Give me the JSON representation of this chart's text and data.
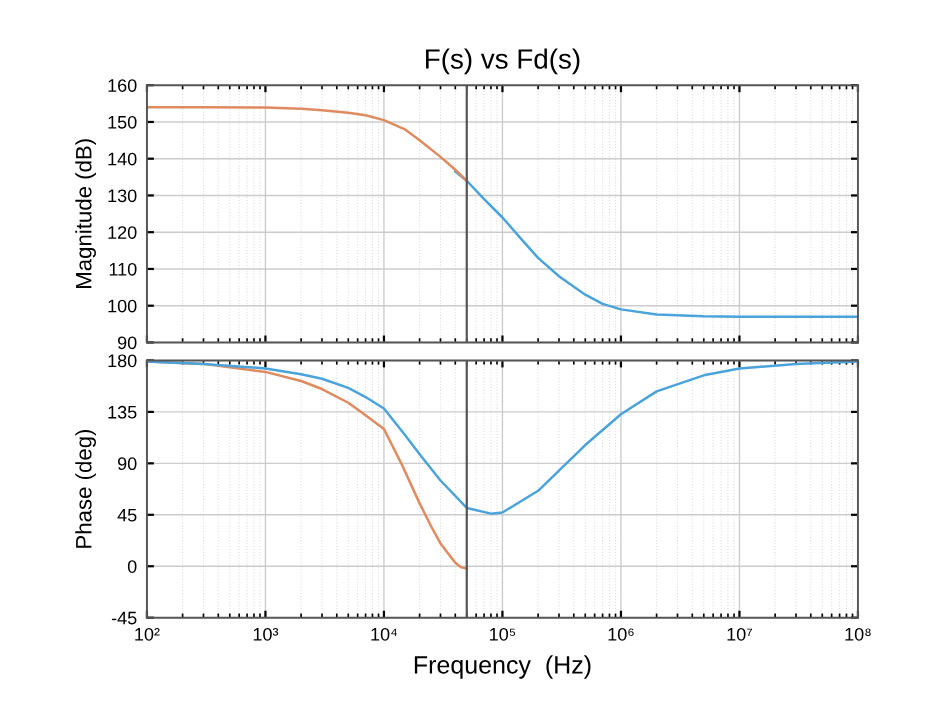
{
  "chart_data": [
    {
      "type": "line",
      "title": "F(s) vs Fd(s)",
      "ylabel": "Magnitude (dB)",
      "log": "x",
      "grid": true,
      "tick_labels": "y",
      "xlim": [
        100,
        100000000
      ],
      "ylim": [
        90,
        160
      ],
      "yticks": [
        90,
        100,
        110,
        120,
        130,
        140,
        150,
        160
      ],
      "xticks": [
        {
          "value": 100,
          "label": null
        },
        {
          "value": 1000,
          "label": null
        },
        {
          "value": 10000,
          "label": null
        },
        {
          "value": 100000,
          "label": null
        },
        {
          "value": 1000000,
          "label": null
        },
        {
          "value": 10000000,
          "label": null
        },
        {
          "value": 100000000,
          "label": null
        }
      ],
      "ref_lines": [
        {
          "axis": "x",
          "value": 50000,
          "label": null,
          "color": "#555555"
        }
      ],
      "series": [
        {
          "color": "#4ba3dc",
          "x": [
            40000,
            50000,
            70000,
            100000,
            150000,
            200000,
            300000,
            500000,
            700000,
            1000000,
            2000000,
            5000000,
            10000000,
            100000000
          ],
          "values": [
            136.5,
            134,
            129,
            124,
            117.5,
            113,
            108,
            103,
            100.5,
            99,
            97.6,
            97.1,
            97,
            97
          ]
        },
        {
          "color": "#e08a5f",
          "x": [
            100,
            300,
            1000,
            2000,
            3000,
            5000,
            7000,
            10000,
            15000,
            20000,
            30000,
            40000,
            50000
          ],
          "values": [
            154,
            154,
            153.9,
            153.6,
            153.2,
            152.5,
            151.8,
            150.5,
            148,
            145,
            140.5,
            137,
            134
          ]
        }
      ]
    },
    {
      "type": "line",
      "xlabel": "Frequency  (Hz)",
      "ylabel": "Phase (deg)",
      "log": "x",
      "grid": true,
      "xlim": [
        100,
        100000000
      ],
      "ylim": [
        -45,
        180
      ],
      "yticks": [
        -45,
        0,
        45,
        90,
        135,
        180
      ],
      "xticks": [
        {
          "value": 100,
          "label": "10²"
        },
        {
          "value": 1000,
          "label": "10³"
        },
        {
          "value": 10000,
          "label": "10⁴"
        },
        {
          "value": 100000,
          "label": "10⁵"
        },
        {
          "value": 1000000,
          "label": "10⁶"
        },
        {
          "value": 10000000,
          "label": "10⁷"
        },
        {
          "value": 100000000,
          "label": "10⁸"
        }
      ],
      "ref_lines": [
        {
          "axis": "x",
          "value": 50000,
          "label": null,
          "color": "#555555"
        }
      ],
      "series": [
        {
          "color": "#e08a5f",
          "x": [
            100,
            300,
            1000,
            2000,
            3000,
            5000,
            7000,
            10000,
            14000,
            20000,
            25000,
            30000,
            40000,
            45000,
            50000
          ],
          "values": [
            179,
            177,
            170,
            162,
            155,
            143,
            132,
            120,
            90,
            55,
            35,
            20,
            3,
            -1,
            -2
          ]
        },
        {
          "color": "#4ba3dc",
          "x": [
            100,
            300,
            1000,
            2000,
            3000,
            5000,
            7000,
            10000,
            15000,
            20000,
            30000,
            50000,
            80000,
            100000,
            200000,
            500000,
            1000000,
            2000000,
            5000000,
            10000000,
            30000000,
            100000000
          ],
          "values": [
            179,
            177,
            173,
            168,
            164,
            156,
            148,
            138,
            115,
            98,
            75,
            51,
            46,
            47,
            66,
            106,
            133,
            153,
            167,
            173,
            177,
            179
          ]
        }
      ]
    }
  ]
}
